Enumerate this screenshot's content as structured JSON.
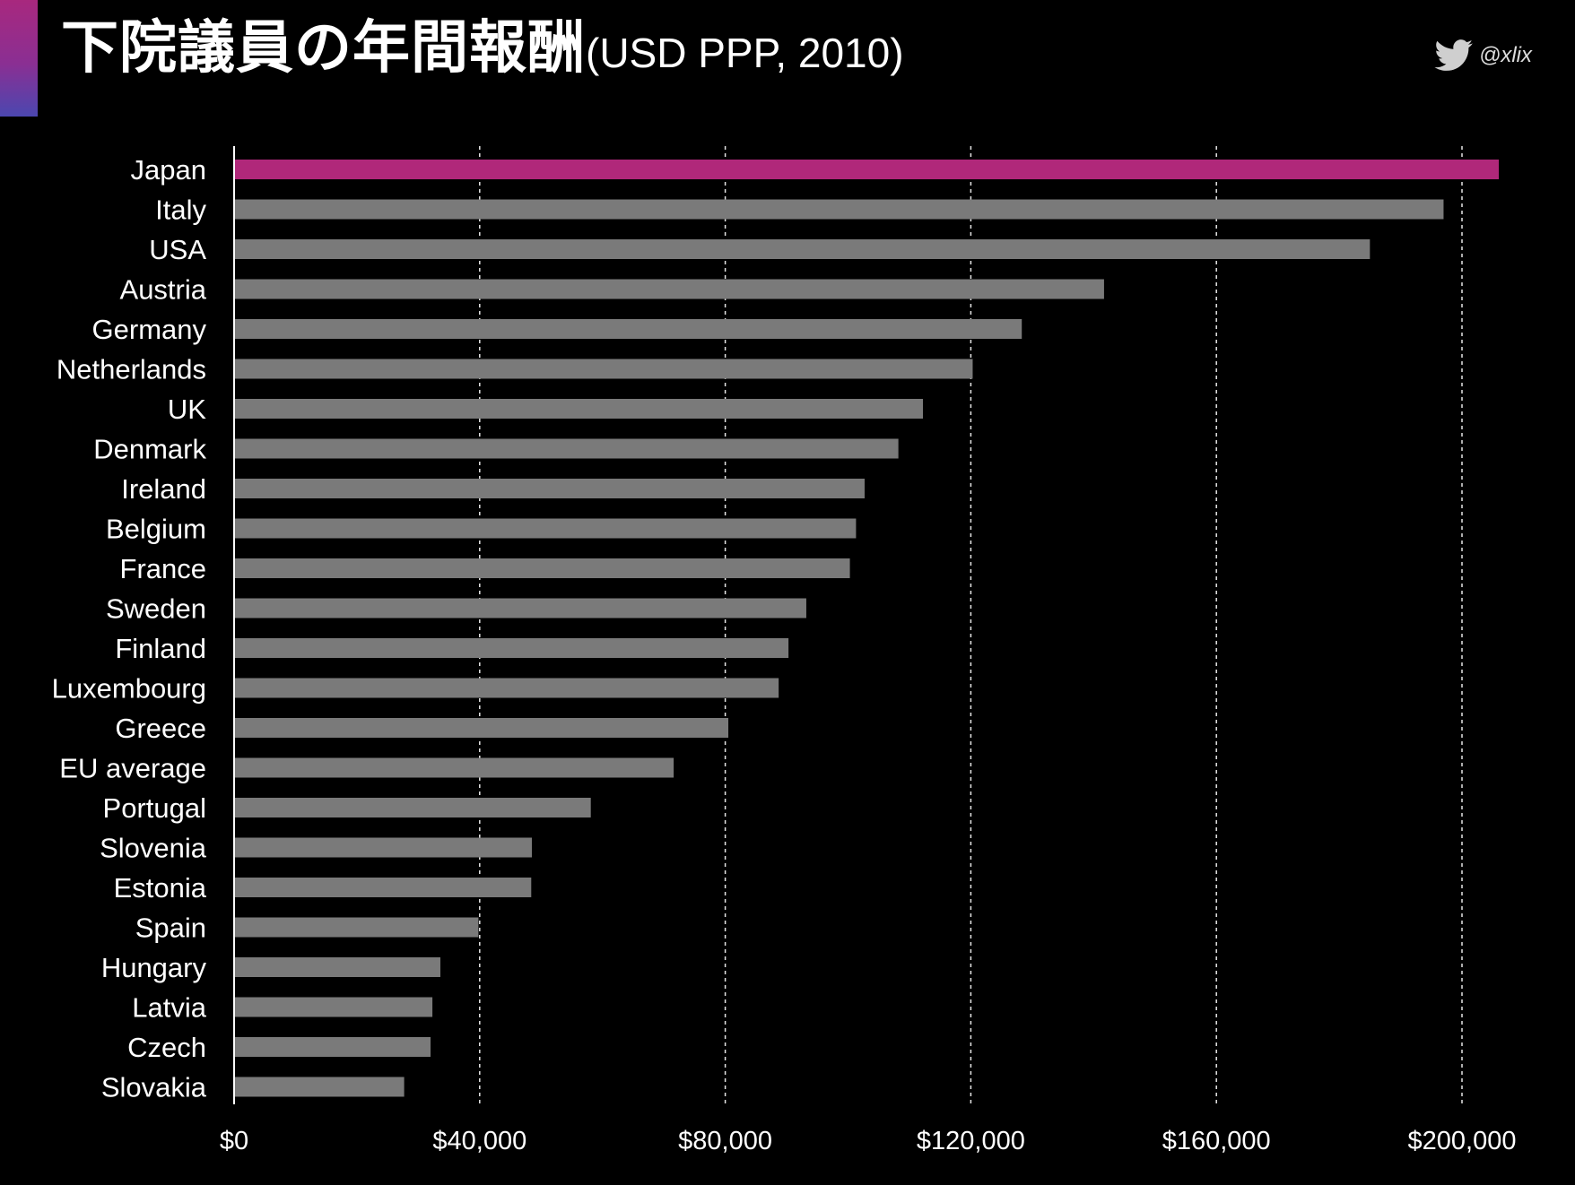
{
  "header": {
    "title_main": "下院議員の年間報酬",
    "title_sub": "(USD PPP, 2010)",
    "handle": "@xlix",
    "handle_icon": "twitter-bird-icon"
  },
  "colors": {
    "background": "#000000",
    "highlight_bar": "#b0287a",
    "default_bar": "#7a7a7a",
    "gridline": "#ffffff",
    "accent_gradient_top": "#a8287e",
    "accent_gradient_bottom": "#4b47b0"
  },
  "chart_data": {
    "type": "bar",
    "orientation": "horizontal",
    "title": "下院議員の年間報酬(USD PPP, 2010)",
    "xlabel": "",
    "ylabel": "",
    "xlim": [
      0,
      200000
    ],
    "x_ticks": [
      0,
      40000,
      80000,
      120000,
      160000,
      200000
    ],
    "x_tick_labels": [
      "$0",
      "$40,000",
      "$80,000",
      "$120,000",
      "$160,000",
      "$200,000"
    ],
    "grid": "vertical dashed",
    "highlight_category": "Japan",
    "categories": [
      "Japan",
      "Italy",
      "USA",
      "Austria",
      "Germany",
      "Netherlands",
      "UK",
      "Denmark",
      "Ireland",
      "Belgium",
      "France",
      "Sweden",
      "Finland",
      "Luxembourg",
      "Greece",
      "EU average",
      "Portugal",
      "Slovenia",
      "Estonia",
      "Spain",
      "Hungary",
      "Latvia",
      "Czech",
      "Slovakia"
    ],
    "values": [
      206000,
      197000,
      185000,
      141700,
      128300,
      120300,
      112200,
      108200,
      102700,
      101300,
      100300,
      93200,
      90300,
      88700,
      80500,
      71600,
      58100,
      48500,
      48400,
      39800,
      33600,
      32300,
      32000,
      27700
    ]
  }
}
